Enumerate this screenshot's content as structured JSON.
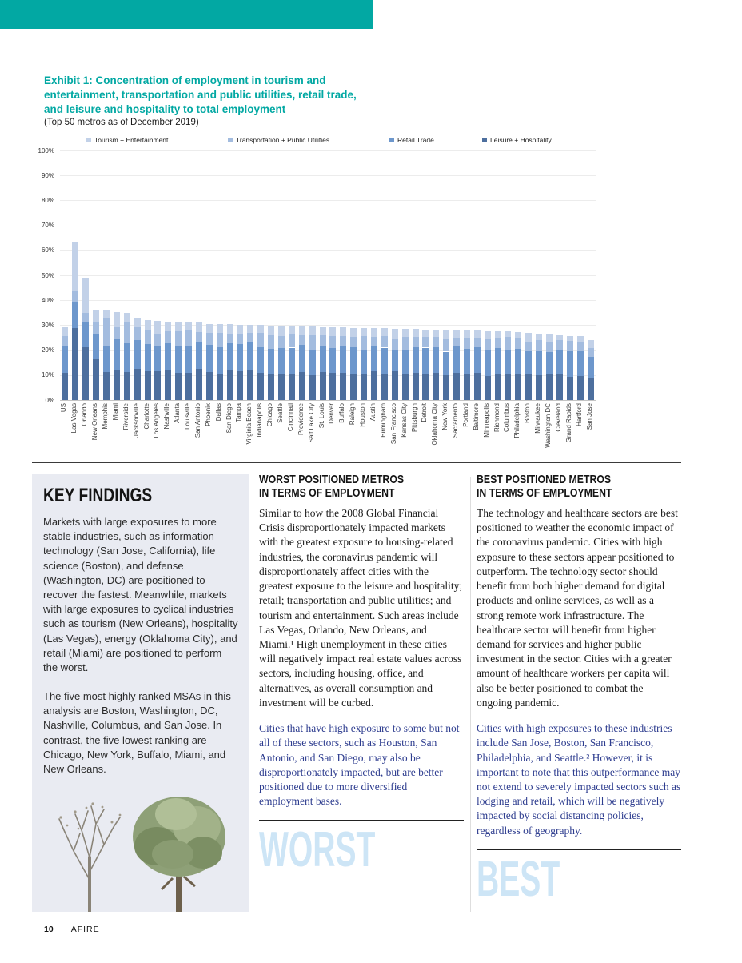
{
  "page": {
    "page_number": "10",
    "brand": "AFIRE"
  },
  "exhibit": {
    "title": "Exhibit 1: Concentration of employment in tourism and entertainment, transportation and public utilities, retail trade, and leisure and hospitality to total employment",
    "subtitle": "(Top 50 metros as of December 2019)"
  },
  "colors": {
    "accent_teal": "#02a8a3",
    "highlight_blue_text": "#2e3d8f",
    "watermark_light_blue": "#cde5f6",
    "key_findings_panel_bg": "#e9ebf2"
  },
  "chart_data": {
    "type": "bar",
    "stacked": true,
    "title": "",
    "xlabel": "",
    "ylabel": "",
    "ylim": [
      0,
      100
    ],
    "ytick_step": 10,
    "ytick_suffix": "%",
    "grid": true,
    "legend_position": "top",
    "categories": [
      "US",
      "Las Vegas",
      "Orlando",
      "New Orleans",
      "Memphis",
      "Miami",
      "Riverside",
      "Jacksonville",
      "Charlotte",
      "Los Angeles",
      "Nashville",
      "Atlanta",
      "Louisville",
      "San Antonio",
      "Phoenix",
      "Dallas",
      "San Diego",
      "Tampa",
      "Virginia Beach",
      "Indianapolis",
      "Chicago",
      "Seattle",
      "Cincinnati",
      "Providence",
      "Salt Lake City",
      "St. Louis",
      "Denver",
      "Buffalo",
      "Raleigh",
      "Houston",
      "Austin",
      "Birmingham",
      "San Francisco",
      "Kansas City",
      "Pittsburgh",
      "Detroit",
      "Oklahoma City",
      "New York",
      "Sacramento",
      "Portland",
      "Baltimore",
      "Minneapolis",
      "Richmond",
      "Columbus",
      "Philadelphia",
      "Boston",
      "Milwaukee",
      "Washington DC",
      "Cleveland",
      "Grand Rapids",
      "Hartford",
      "San Jose"
    ],
    "series": [
      {
        "name": "Tourism + Entertainment",
        "color": "#c2d1e8",
        "values": [
          3.5,
          20,
          14,
          5.3,
          3.4,
          5.9,
          3.6,
          3.6,
          3.9,
          5.1,
          4,
          3.7,
          3.3,
          3.6,
          3.7,
          3.6,
          4.1,
          3.6,
          3.1,
          3.1,
          3.8,
          4,
          3.4,
          3.5,
          3.3,
          3.4,
          3.6,
          3.4,
          3.6,
          3.3,
          3.6,
          3.1,
          4.2,
          3.2,
          3,
          3,
          2.9,
          3.8,
          2.9,
          2.8,
          2.7,
          3.3,
          2.7,
          2.2,
          2.6,
          3.4,
          2.8,
          3.1,
          1.7,
          2,
          2.1,
          3.4
        ]
      },
      {
        "name": "Transportation + Public Utilities",
        "color": "#a3bcdf",
        "values": [
          4.2,
          4.5,
          3.5,
          4.5,
          11,
          4.8,
          8.5,
          5.3,
          5.8,
          5,
          4.7,
          6,
          6.4,
          3.9,
          4.7,
          5.6,
          3.5,
          4,
          3.9,
          5.7,
          5.6,
          5,
          5.2,
          3.8,
          5.8,
          4.4,
          4.9,
          4,
          4.1,
          5.3,
          3.8,
          4.6,
          4.2,
          5,
          4.2,
          4.3,
          4,
          4.9,
          3.6,
          4.6,
          4,
          4.6,
          4.1,
          5,
          4.3,
          3.9,
          4.2,
          4.1,
          4,
          4.1,
          3.9,
          3.4
        ]
      },
      {
        "name": "Retail Trade",
        "color": "#6d97cc",
        "values": [
          10.5,
          10,
          10.5,
          10.2,
          10.6,
          12.3,
          11.5,
          11.6,
          10.8,
          10.3,
          10.6,
          10.6,
          10.6,
          11,
          11,
          10.5,
          10.4,
          11.2,
          11.1,
          10.4,
          9.9,
          10.4,
          10.3,
          11,
          10.4,
          10.4,
          9.9,
          10.8,
          10.6,
          10,
          10,
          10.6,
          8.7,
          10.1,
          10.4,
          10.6,
          10.3,
          9.4,
          10.5,
          10.2,
          10.2,
          10.2,
          10.3,
          9.9,
          10.3,
          9.4,
          9.9,
          8.8,
          10,
          10.3,
          9.9,
          8.4
        ]
      },
      {
        "name": "Leisure + Hospitality",
        "color": "#4d6f9e",
        "values": [
          11,
          29,
          21,
          16.3,
          11.2,
          12.2,
          11.3,
          12.4,
          11.7,
          11.4,
          12.2,
          11,
          10.8,
          12.5,
          11.2,
          10.7,
          12.3,
          11.4,
          12,
          10.8,
          10.5,
          10.3,
          10.7,
          11.2,
          9.9,
          11.1,
          10.8,
          10.9,
          10.7,
          10.3,
          11.4,
          10.4,
          11.5,
          10.2,
          10.8,
          10.4,
          11,
          10,
          11,
          10.3,
          10.9,
          9.6,
          10.5,
          10.4,
          10.2,
          10.2,
          9.8,
          10.5,
          10.2,
          9.3,
          9.6,
          9
        ]
      }
    ],
    "stack_order_bottom_to_top": [
      "Leisure + Hospitality",
      "Retail Trade",
      "Transportation + Public Utilities",
      "Tourism + Entertainment"
    ]
  },
  "key_findings": {
    "heading": "KEY FINDINGS",
    "paragraphs": [
      "Markets with large exposures to more stable industries, such as information technology (San Jose, California), life science (Boston), and defense (Washington, DC) are positioned to recover the fastest. Meanwhile, markets with large exposures to cyclical industries such as tourism (New Orleans), hospitality (Las Vegas), energy (Oklahoma City), and retail (Miami) are positioned to perform the worst.",
      "The five most highly ranked MSAs in this analysis are Boston, Washington, DC, Nashville, Columbus, and San Jose. In contrast, the five lowest ranking are Chicago, New York, Buffalo, Miami, and New Orleans."
    ]
  },
  "worst": {
    "heading_line1": "WORST POSITIONED METROS",
    "heading_line2": "IN TERMS OF EMPLOYMENT",
    "body": "Similar to how the 2008 Global Financial Crisis disproportionately impacted markets with the greatest exposure to housing-related industries, the coronavirus pandemic will disproportionately affect cities with the greatest exposure to the leisure and hospitality; retail; transportation and public utilities; and tourism and entertainment. Such areas include Las Vegas, Orlando, New Orleans, and Miami.¹ High unemployment in these cities will negatively impact real estate values across sectors, including housing, office, and alternatives, as overall consumption and investment will be curbed.",
    "highlight": "Cities that have high exposure to some but not all of these sectors, such as Houston, San Antonio, and San Diego, may also be disproportionately impacted, but are better positioned due to more diversified employment bases.",
    "watermark": "WORST"
  },
  "best": {
    "heading_line1": "BEST POSITIONED METROS",
    "heading_line2": "IN TERMS OF EMPLOYMENT",
    "body": "The technology and healthcare sectors are best positioned to weather the economic impact of the coronavirus pandemic. Cities with high exposure to these sectors appear positioned to outperform. The technology sector should benefit from both higher demand for digital products and online services, as well as a strong remote work infrastructure. The healthcare sector will benefit from higher demand for services and higher public investment in the sector. Cities with a greater amount of healthcare workers per capita will also be better positioned to combat the ongoing pandemic.",
    "highlight": "Cities with high exposures to these industries include San Jose, Boston, San Francisco, Philadelphia, and Seattle.² However, it is important to note that this outperformance may not extend to severely impacted sectors such as lodging and retail, which will be negatively impacted by social distancing policies, regardless of geography.",
    "watermark": "BEST"
  }
}
